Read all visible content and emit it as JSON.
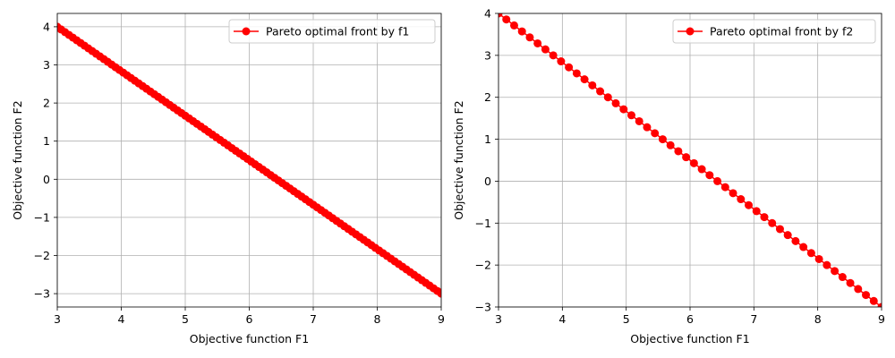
{
  "chart_data": [
    {
      "type": "line",
      "title": "",
      "xlabel": "Objective function F1",
      "ylabel": "Objective function F2",
      "xlim": [
        3,
        9
      ],
      "ylim": [
        -3.35,
        4.35
      ],
      "xticks": [
        "3",
        "4",
        "5",
        "6",
        "7",
        "8",
        "9"
      ],
      "yticks": [
        "−3",
        "−2",
        "−1",
        "0",
        "1",
        "2",
        "3",
        "4"
      ],
      "grid": true,
      "legend_position": "top-right",
      "series": [
        {
          "name": "Pareto optimal front by f1",
          "color": "#ff0000",
          "marker": "circle",
          "x_start": 3,
          "x_end": 9,
          "y_start": 4,
          "y_end": -3,
          "num_points": 100
        }
      ]
    },
    {
      "type": "line",
      "title": "",
      "xlabel": "Objective function F1",
      "ylabel": "Objective function F2",
      "xlim": [
        3,
        9
      ],
      "ylim": [
        -3,
        4
      ],
      "xticks": [
        "3",
        "4",
        "5",
        "6",
        "7",
        "8",
        "9"
      ],
      "yticks": [
        "−3",
        "−2",
        "−1",
        "0",
        "1",
        "2",
        "3",
        "4"
      ],
      "grid": true,
      "legend_position": "top-right",
      "series": [
        {
          "name": "Pareto optimal front by f2",
          "color": "#ff0000",
          "marker": "circle",
          "x_start": 3,
          "x_end": 9,
          "y_start": 4,
          "y_end": -3,
          "num_points": 50
        }
      ]
    }
  ]
}
